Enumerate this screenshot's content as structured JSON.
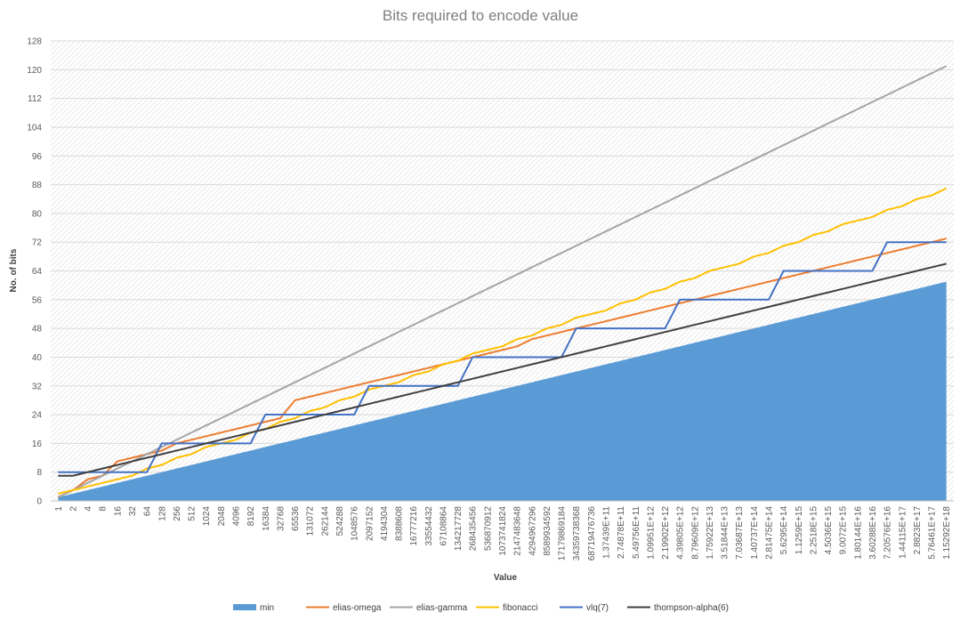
{
  "chart_data": {
    "type": "line",
    "title": "Bits required to encode value",
    "xlabel": "Value",
    "ylabel": "No. of bits",
    "ylim": [
      0,
      128
    ],
    "yticks": [
      0,
      8,
      16,
      24,
      32,
      40,
      48,
      56,
      64,
      72,
      80,
      88,
      96,
      104,
      112,
      120,
      128
    ],
    "grid": true,
    "legend_position": "bottom",
    "categories": [
      "1",
      "2",
      "4",
      "8",
      "16",
      "32",
      "64",
      "128",
      "256",
      "512",
      "1024",
      "2048",
      "4096",
      "8192",
      "16384",
      "32768",
      "65536",
      "131072",
      "262144",
      "524288",
      "1048576",
      "2097152",
      "4194304",
      "8388608",
      "16777216",
      "33554432",
      "67108864",
      "134217728",
      "268435456",
      "536870912",
      "1073741824",
      "2147483648",
      "4294967296",
      "8589934592",
      "17179869184",
      "34359738368",
      "68719476736",
      "1.37439E+11",
      "2.74878E+11",
      "5.49756E+11",
      "1.09951E+12",
      "2.19902E+12",
      "4.39805E+12",
      "8.79609E+12",
      "1.75922E+13",
      "3.51844E+13",
      "7.03687E+13",
      "1.40737E+14",
      "2.81475E+14",
      "5.6295E+14",
      "1.1259E+15",
      "2.2518E+15",
      "4.5036E+15",
      "9.0072E+15",
      "1.80144E+16",
      "3.60288E+16",
      "7.20576E+16",
      "1.44115E+17",
      "2.8823E+17",
      "5.76461E+17",
      "1.15292E+18"
    ],
    "series": [
      {
        "name": "min",
        "type": "area",
        "color": "#5b9bd5",
        "values": [
          1,
          2,
          3,
          4,
          5,
          6,
          7,
          8,
          9,
          10,
          11,
          12,
          13,
          14,
          15,
          16,
          17,
          18,
          19,
          20,
          21,
          22,
          23,
          24,
          25,
          26,
          27,
          28,
          29,
          30,
          31,
          32,
          33,
          34,
          35,
          36,
          37,
          38,
          39,
          40,
          41,
          42,
          43,
          44,
          45,
          46,
          47,
          48,
          49,
          50,
          51,
          52,
          53,
          54,
          55,
          56,
          57,
          58,
          59,
          60,
          61
        ]
      },
      {
        "name": "elias-omega",
        "type": "line",
        "color": "#ed7d31",
        "values": [
          1,
          3,
          6,
          7,
          11,
          12,
          13,
          14,
          16,
          17,
          18,
          19,
          20,
          21,
          22,
          23,
          28,
          29,
          30,
          31,
          32,
          33,
          34,
          35,
          36,
          37,
          38,
          39,
          40,
          41,
          42,
          43,
          45,
          46,
          47,
          48,
          49,
          50,
          51,
          52,
          53,
          54,
          55,
          56,
          57,
          58,
          59,
          60,
          61,
          62,
          63,
          64,
          65,
          66,
          67,
          68,
          69,
          70,
          71,
          72,
          73
        ]
      },
      {
        "name": "elias-gamma",
        "type": "line",
        "color": "#a5a5a5",
        "values": [
          1,
          3,
          5,
          7,
          9,
          11,
          13,
          15,
          17,
          19,
          21,
          23,
          25,
          27,
          29,
          31,
          33,
          35,
          37,
          39,
          41,
          43,
          45,
          47,
          49,
          51,
          53,
          55,
          57,
          59,
          61,
          63,
          65,
          67,
          69,
          71,
          73,
          75,
          77,
          79,
          81,
          83,
          85,
          87,
          89,
          91,
          93,
          95,
          97,
          99,
          101,
          103,
          105,
          107,
          109,
          111,
          113,
          115,
          117,
          119,
          121
        ]
      },
      {
        "name": "fibonacci",
        "type": "line",
        "color": "#ffc000",
        "values": [
          2,
          3,
          4,
          5,
          6,
          7,
          9,
          10,
          12,
          13,
          15,
          16,
          17,
          19,
          20,
          22,
          23,
          25,
          26,
          28,
          29,
          31,
          32,
          33,
          35,
          36,
          38,
          39,
          41,
          42,
          43,
          45,
          46,
          48,
          49,
          51,
          52,
          53,
          55,
          56,
          58,
          59,
          61,
          62,
          64,
          65,
          66,
          68,
          69,
          71,
          72,
          74,
          75,
          77,
          78,
          79,
          81,
          82,
          84,
          85,
          87
        ]
      },
      {
        "name": "vlq(7)",
        "type": "line",
        "color": "#4472c4",
        "values": [
          8,
          8,
          8,
          8,
          8,
          8,
          8,
          16,
          16,
          16,
          16,
          16,
          16,
          16,
          24,
          24,
          24,
          24,
          24,
          24,
          24,
          32,
          32,
          32,
          32,
          32,
          32,
          32,
          40,
          40,
          40,
          40,
          40,
          40,
          40,
          48,
          48,
          48,
          48,
          48,
          48,
          48,
          56,
          56,
          56,
          56,
          56,
          56,
          56,
          64,
          64,
          64,
          64,
          64,
          64,
          64,
          72,
          72,
          72,
          72,
          72
        ]
      },
      {
        "name": "thompson-alpha(6)",
        "type": "line",
        "color": "#404040",
        "values": [
          7,
          7,
          8,
          9,
          10,
          11,
          12,
          13,
          14,
          15,
          16,
          17,
          18,
          19,
          20,
          21,
          22,
          23,
          24,
          25,
          26,
          27,
          28,
          29,
          30,
          31,
          32,
          33,
          34,
          35,
          36,
          37,
          38,
          39,
          40,
          41,
          42,
          43,
          44,
          45,
          46,
          47,
          48,
          49,
          50,
          51,
          52,
          53,
          54,
          55,
          56,
          57,
          58,
          59,
          60,
          61,
          62,
          63,
          64,
          65,
          66
        ]
      }
    ]
  }
}
